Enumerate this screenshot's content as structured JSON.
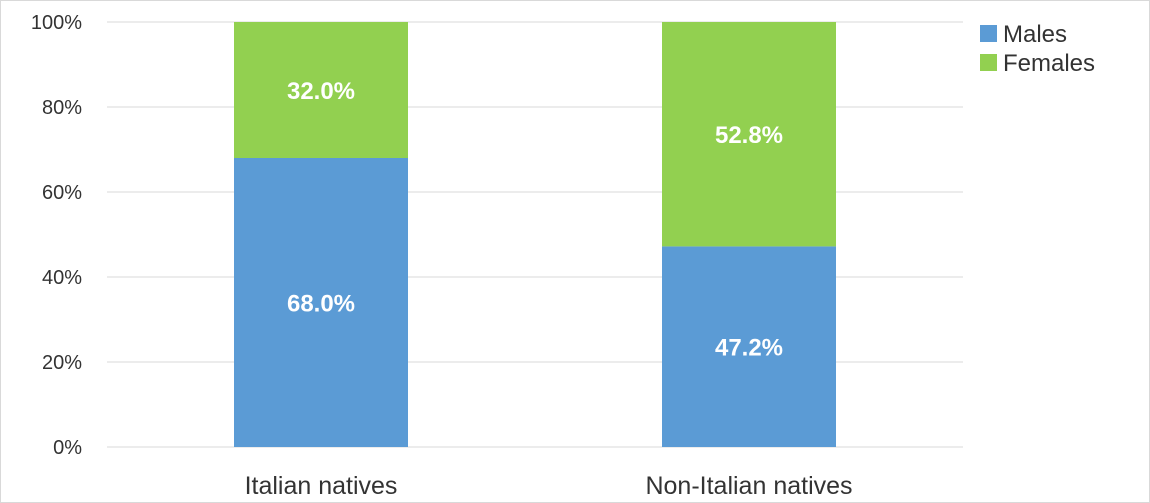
{
  "chart_data": {
    "type": "bar",
    "stacked": true,
    "categories": [
      "Italian natives",
      "Non-Italian natives"
    ],
    "series": [
      {
        "name": "Males",
        "values": [
          68.0,
          47.2
        ],
        "color": "#5B9BD5",
        "labels": [
          "68.0%",
          "47.2%"
        ]
      },
      {
        "name": "Females",
        "values": [
          32.0,
          52.8
        ],
        "color": "#92D050",
        "labels": [
          "32.0%",
          "52.8%"
        ]
      }
    ],
    "ylim": [
      0,
      100
    ],
    "yticks": [
      "0%",
      "20%",
      "40%",
      "60%",
      "80%",
      "100%"
    ],
    "grid": true,
    "legend": "right"
  }
}
